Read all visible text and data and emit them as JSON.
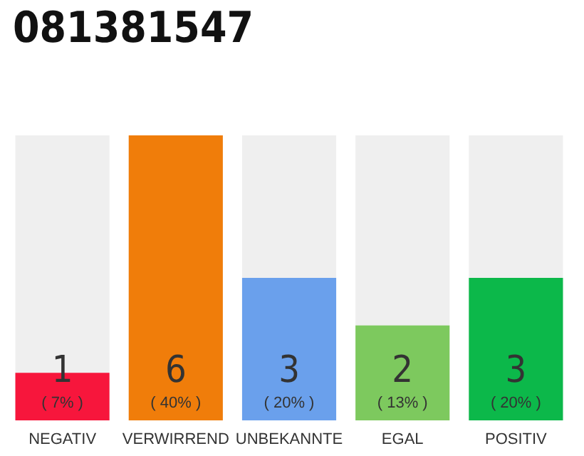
{
  "chart_data": {
    "type": "bar",
    "title": "081381547",
    "categories": [
      "NEGATIV",
      "VERWIRREND",
      "UNBEKANNTE",
      "EGAL",
      "POSITIV"
    ],
    "values": [
      1,
      6,
      3,
      2,
      3
    ],
    "colors": [
      "#f7163c",
      "#f07d0a",
      "#6aa0ec",
      "#7dc95e",
      "#0cb84a"
    ],
    "data_labels": true,
    "annotations": [
      "( 7% )",
      "( 40% )",
      "( 20% )",
      "( 13% )",
      "( 20% )"
    ]
  }
}
